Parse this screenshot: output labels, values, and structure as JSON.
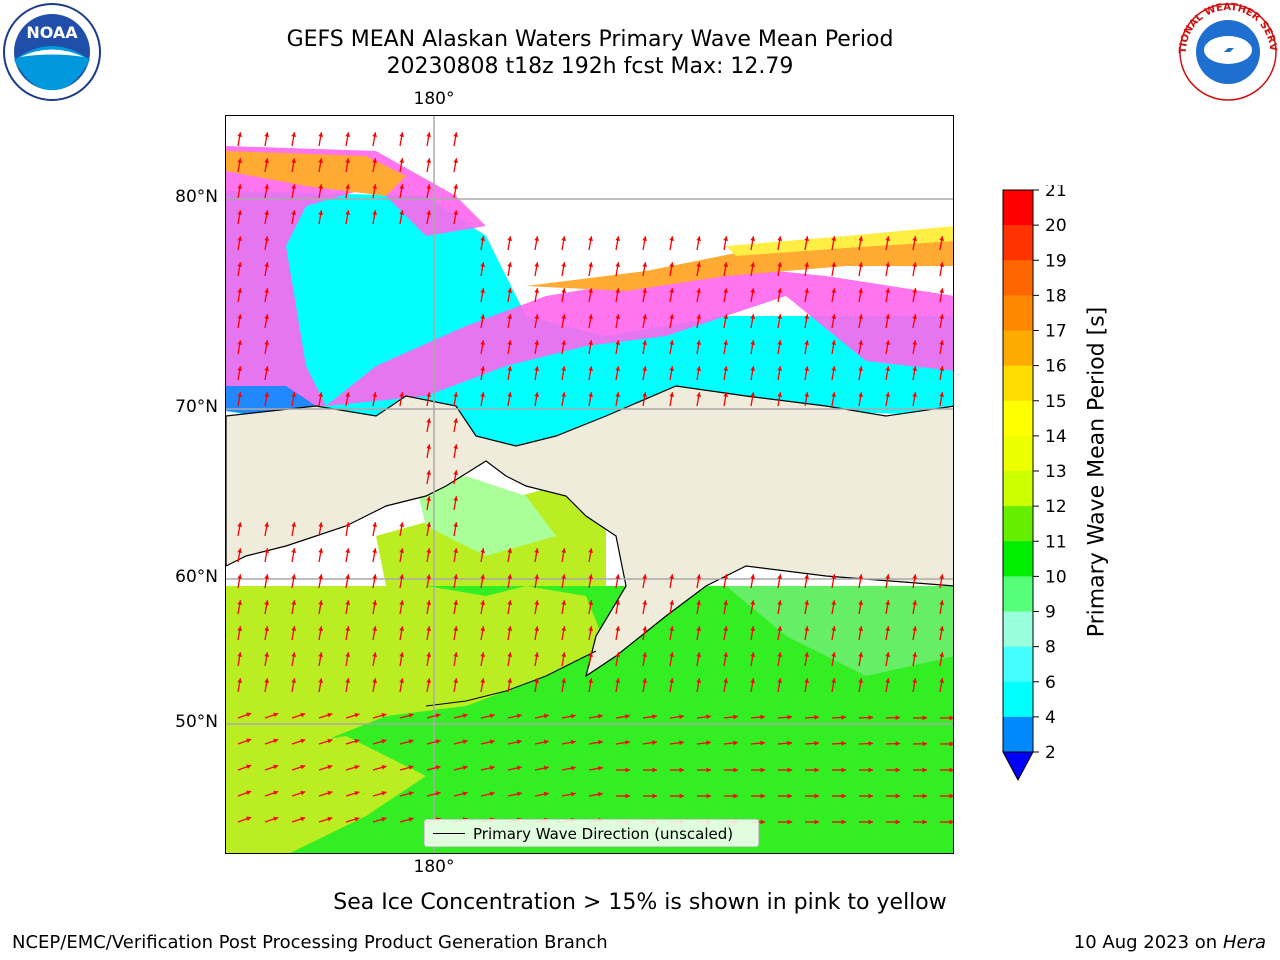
{
  "title": {
    "line1": "GEFS MEAN Alaskan Waters Primary Wave Mean Period",
    "line2": "20230808 t18z 192h fcst   Max: 12.79"
  },
  "map": {
    "lon_labels": [
      "180°",
      "180°"
    ],
    "lat_labels": [
      "80°N",
      "70°N",
      "60°N",
      "50°N"
    ],
    "legend_entry": "Primary Wave Direction (unscaled)",
    "colors": {
      "land": "#efecdc",
      "ice_pink": "#ff66ee",
      "ice_orange": "#ffaa33",
      "ice_yellow": "#ffee44",
      "shallow_cyan": "#00ffff",
      "ocean_green": "#33ee22",
      "ocean_lime": "#bbee22",
      "arrow": "#ff0000"
    }
  },
  "colorbar": {
    "label": "Primary Wave Mean Period [s]",
    "ticks": [
      "21",
      "20",
      "19",
      "18",
      "17",
      "16",
      "15",
      "14",
      "13",
      "12",
      "11",
      "10",
      "9",
      "8",
      "6",
      "4",
      "2"
    ],
    "colors": [
      "#ff0000",
      "#ff3300",
      "#ff6600",
      "#ff8800",
      "#ffaa00",
      "#ffdd00",
      "#ffff00",
      "#eeff00",
      "#ccff00",
      "#66ee00",
      "#00ee00",
      "#55ff77",
      "#99ffdd",
      "#44ffff",
      "#00ffff",
      "#0088ff",
      "#0000ff"
    ]
  },
  "ice_note": "Sea Ice Concentration > 15% is shown in pink to yellow",
  "footer": {
    "left": "NCEP/EMC/Verification Post Processing Product Generation Branch",
    "date": "10 Aug 2023 on",
    "host": "Hera"
  },
  "logos": {
    "noaa_text": "NOAA",
    "nws_text": "NATIONAL WEATHER SERVICE"
  }
}
